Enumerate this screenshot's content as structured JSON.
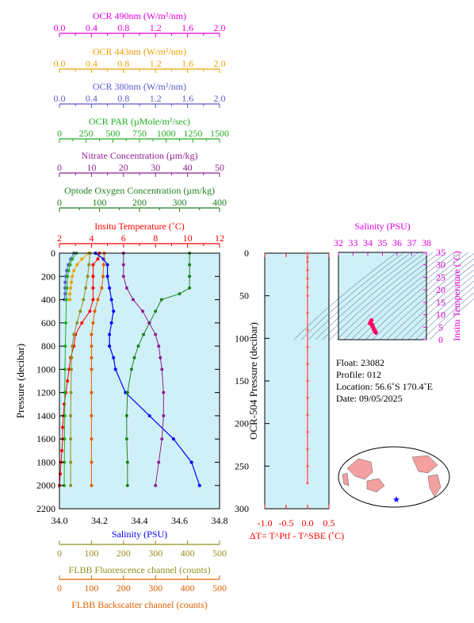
{
  "colors": {
    "ocr490": "#e000e0",
    "ocr443": "#f0a000",
    "ocr380": "#5a5ad0",
    "par": "#20b020",
    "nitrate": "#902090",
    "oxygen": "#208020",
    "temperature": "#ff0000",
    "salinity": "#0000ff",
    "fluorescence": "#909020",
    "backscatter": "#e06000",
    "plot_bg": "#d0f0f8",
    "map_land": "#f4a0a0",
    "ts_points": "#ff0060"
  },
  "top_axes": [
    {
      "key": "ocr490",
      "label": "OCR 490nm (W/m²/nm)",
      "ticks": [
        "0.0",
        "0.4",
        "0.8",
        "1.2",
        "1.6",
        "2.0"
      ]
    },
    {
      "key": "ocr443",
      "label": "OCR 443nm (W/m²/nm)",
      "ticks": [
        "0.0",
        "0.4",
        "0.8",
        "1.2",
        "1.6",
        "2.0"
      ]
    },
    {
      "key": "ocr380",
      "label": "OCR 380nm (W/m²/nm)",
      "ticks": [
        "0.0",
        "0.4",
        "0.8",
        "1.2",
        "1.6",
        "2.0"
      ]
    },
    {
      "key": "par",
      "label": "OCR PAR (µMole/m²/sec)",
      "ticks": [
        "0",
        "250",
        "500",
        "750",
        "1000",
        "1250",
        "1500"
      ]
    },
    {
      "key": "nitrate",
      "label": "Nitrate Concentration (µm/kg)",
      "ticks": [
        "0",
        "10",
        "20",
        "30",
        "40",
        "50"
      ]
    },
    {
      "key": "oxygen",
      "label": "Optode Oxygen Concentration (µm/kg)",
      "ticks": [
        "0",
        "100",
        "200",
        "300",
        "400"
      ]
    },
    {
      "key": "temperature",
      "label": "Insitu Temperature (˚C)",
      "ticks": [
        "2",
        "4",
        "6",
        "8",
        "10",
        "12"
      ]
    }
  ],
  "bottom_axes": [
    {
      "key": "salinity",
      "label": "Salinity (PSU)",
      "ticks": [
        "34.0",
        "34.2",
        "34.4",
        "34.6",
        "34.8"
      ]
    },
    {
      "key": "fluorescence",
      "label": "FLBB Fluorescence channel (counts)",
      "ticks": [
        "0",
        "100",
        "200",
        "300",
        "400",
        "500"
      ]
    },
    {
      "key": "backscatter",
      "label": "FLBB Backscatter channel (counts)",
      "ticks": [
        "0",
        "100",
        "200",
        "300",
        "400",
        "500"
      ]
    }
  ],
  "main_y": {
    "label": "Pressure (decibar)",
    "ticks": [
      "0",
      "200",
      "400",
      "600",
      "800",
      "1000",
      "1200",
      "1400",
      "1600",
      "1800",
      "2000",
      "2200"
    ]
  },
  "mid_plot": {
    "y_label": "OCR-504 Pressure (decibar)",
    "y_ticks": [
      "0",
      "50",
      "100",
      "150",
      "200",
      "250",
      "300"
    ],
    "x_ticks": [
      "-1.0",
      "-0.5",
      "0.0",
      "0.5"
    ],
    "x_label": "ΔT= T^Ptf - T^SBE (˚C)"
  },
  "ts_plot": {
    "top_label": "Salinity (PSU)",
    "x_ticks": [
      "32",
      "33",
      "34",
      "35",
      "36",
      "37",
      "38"
    ],
    "right_label": "Insitu Temperature (˚C)",
    "y_ticks": [
      "0",
      "5",
      "10",
      "15",
      "20",
      "25",
      "30",
      "35"
    ]
  },
  "info": {
    "float": "Float:  23082",
    "profile": "Profile:  012",
    "location": "Location:  56.6˚S  170.4˚E",
    "date": "Date:  09/05/2025"
  },
  "chart_data": {
    "type": "line",
    "y_axis": {
      "name": "Pressure (decibar)",
      "ylim": [
        2200,
        0
      ]
    },
    "series": [
      {
        "name": "Insitu Temperature",
        "xlim": [
          2,
          12
        ],
        "p": [
          0,
          50,
          100,
          200,
          300,
          400,
          500,
          600,
          700,
          800,
          900,
          1000,
          1100,
          1200,
          1300,
          1400,
          1500,
          1600,
          1700,
          1800,
          1900,
          2000
        ],
        "v": [
          4.5,
          4.4,
          4.1,
          4.1,
          4.1,
          4.1,
          3.9,
          3.4,
          3.0,
          2.9,
          2.7,
          2.6,
          2.5,
          2.4,
          2.3,
          2.25,
          2.2,
          2.2,
          2.15,
          2.1,
          2.05,
          2.0
        ]
      },
      {
        "name": "Salinity",
        "xlim": [
          34.0,
          34.8
        ],
        "p": [
          0,
          50,
          100,
          200,
          300,
          400,
          500,
          600,
          700,
          800,
          900,
          1000,
          1200,
          1400,
          1600,
          1800,
          2000
        ],
        "v": [
          34.18,
          34.22,
          34.24,
          34.24,
          34.25,
          34.26,
          34.27,
          34.26,
          34.25,
          34.25,
          34.27,
          34.28,
          34.33,
          34.45,
          34.57,
          34.66,
          34.7
        ]
      },
      {
        "name": "Optode Oxygen Concentration",
        "xlim": [
          0,
          400
        ],
        "p": [
          0,
          100,
          200,
          300,
          350,
          400,
          500,
          600,
          700,
          800,
          900,
          1000,
          1200,
          1400,
          1600,
          1800,
          2000
        ],
        "v": [
          325,
          325,
          325,
          325,
          300,
          255,
          240,
          225,
          210,
          197,
          187,
          180,
          170,
          168,
          168,
          170,
          170
        ]
      },
      {
        "name": "Nitrate Concentration",
        "xlim": [
          0,
          50
        ],
        "p": [
          0,
          100,
          200,
          300,
          400,
          500,
          600,
          700,
          800,
          900,
          1000,
          1200,
          1400,
          1600,
          1800,
          2000
        ],
        "v": [
          20,
          20,
          20,
          21,
          23,
          26,
          28,
          30,
          31,
          31.5,
          32,
          32.5,
          32.5,
          32,
          31,
          30
        ]
      },
      {
        "name": "OCR 443nm",
        "xlim": [
          0,
          2
        ],
        "p": [
          0,
          50,
          100,
          150,
          200,
          250,
          300,
          350,
          400
        ],
        "v": [
          0.37,
          0.28,
          0.22,
          0.18,
          0.16,
          0.15,
          0.14,
          0.13,
          0.13
        ]
      },
      {
        "name": "OCR 380nm",
        "xlim": [
          0,
          2
        ],
        "p": [
          0,
          50,
          100,
          150,
          200,
          250,
          300,
          350,
          400
        ],
        "v": [
          0.18,
          0.14,
          0.11,
          0.09,
          0.08,
          0.07,
          0.07,
          0.07,
          0.06
        ]
      },
      {
        "name": "FLBB Fluorescence channel",
        "xlim": [
          0,
          500
        ],
        "p": [
          0,
          100,
          200,
          300,
          400,
          500,
          600,
          700,
          800,
          900,
          1000,
          1200,
          1400,
          1600,
          1800,
          2000
        ],
        "v": [
          95,
          92,
          88,
          82,
          75,
          65,
          55,
          45,
          40,
          38,
          37,
          36,
          35,
          35,
          35,
          35
        ]
      },
      {
        "name": "FLBB Backscatter channel",
        "xlim": [
          0,
          500
        ],
        "p": [
          0,
          100,
          200,
          300,
          400,
          500,
          600,
          700,
          800,
          900,
          1000,
          1200,
          1400,
          1600,
          1800,
          2000
        ],
        "v": [
          140,
          138,
          136,
          132,
          120,
          110,
          105,
          100,
          100,
          100,
          100,
          100,
          100,
          100,
          100,
          100
        ]
      },
      {
        "name": "OCR PAR",
        "xlim": [
          0,
          1500
        ],
        "p": [
          0,
          50,
          100,
          150,
          200,
          300,
          400,
          600,
          800,
          1000,
          1200,
          1400,
          1600,
          1800,
          2000
        ],
        "v": [
          160,
          120,
          100,
          85,
          75,
          70,
          65,
          60,
          55,
          52,
          50,
          50,
          48,
          46,
          45
        ]
      }
    ],
    "delta_t": {
      "name": "ΔT= T^Ptf - T^SBE",
      "xlim": [
        -1,
        0.5
      ],
      "ylim": [
        300,
        0
      ],
      "p": [
        0,
        5,
        10,
        20,
        30,
        40,
        50,
        70,
        90,
        110,
        130,
        150,
        170,
        190,
        210,
        230,
        250,
        270
      ],
      "v": [
        0.0,
        0.0,
        0.0,
        0.0,
        0.0,
        0.0,
        0.0,
        0.0,
        0.0,
        0.0,
        0.0,
        0.0,
        0.0,
        0.0,
        0.0,
        0.0,
        0.0,
        0.0
      ]
    },
    "ts": {
      "name": "T-S",
      "xlim": [
        32,
        38
      ],
      "ylim": [
        0,
        35
      ],
      "s": [
        34.15,
        34.2,
        34.25,
        34.3,
        34.35,
        34.4,
        34.45,
        34.5,
        34.55,
        34.3,
        34.4,
        34.5
      ],
      "t": [
        6.5,
        7.2,
        7.8,
        6.0,
        5.2,
        4.5,
        3.8,
        3.2,
        2.8,
        5.5,
        4.2,
        3.5
      ]
    }
  }
}
